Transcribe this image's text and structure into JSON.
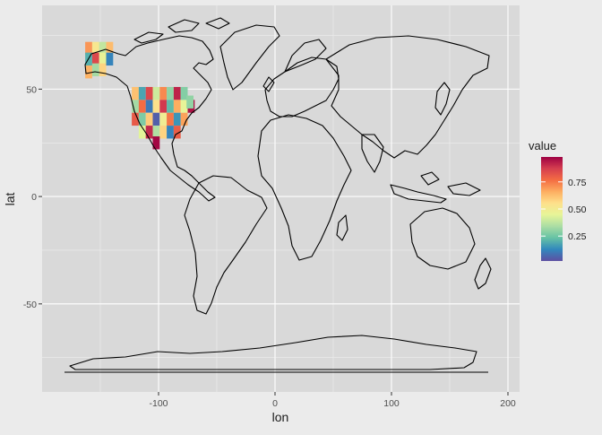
{
  "chart_data": {
    "type": "heatmap",
    "subtype": "choropleth-grid-over-world-map",
    "xlabel": "lon",
    "ylabel": "lat",
    "xlim": [
      -200,
      210
    ],
    "ylim": [
      -91,
      89
    ],
    "x_ticks": [
      -100,
      0,
      100,
      200
    ],
    "y_ticks": [
      -50,
      0,
      50
    ],
    "x_tick_labels": [
      "-100",
      "0",
      "100",
      "200"
    ],
    "y_tick_labels": [
      "-50",
      "0",
      "50"
    ],
    "grid": true,
    "legend": {
      "title": "value",
      "position": "right",
      "ticks": [
        0.25,
        0.5,
        0.75
      ],
      "tick_labels": [
        "0.25",
        "0.50",
        "0.75"
      ],
      "range": [
        0.02,
        0.98
      ],
      "palette": [
        "#5e4fa2",
        "#3288bd",
        "#66c2a5",
        "#abdda4",
        "#e6f598",
        "#fee08b",
        "#fdae61",
        "#f46d43",
        "#d53e4f",
        "#9e0142"
      ]
    },
    "cells": [
      {
        "lon": -120,
        "lat": 48,
        "value": 0.62
      },
      {
        "lon": -114,
        "lat": 48,
        "value": 0.18
      },
      {
        "lon": -108,
        "lat": 48,
        "value": 0.85
      },
      {
        "lon": -102,
        "lat": 48,
        "value": 0.4
      },
      {
        "lon": -96,
        "lat": 48,
        "value": 0.72
      },
      {
        "lon": -90,
        "lat": 48,
        "value": 0.3
      },
      {
        "lon": -84,
        "lat": 48,
        "value": 0.92
      },
      {
        "lon": -120,
        "lat": 42,
        "value": 0.33
      },
      {
        "lon": -114,
        "lat": 42,
        "value": 0.77
      },
      {
        "lon": -108,
        "lat": 42,
        "value": 0.1
      },
      {
        "lon": -102,
        "lat": 42,
        "value": 0.55
      },
      {
        "lon": -96,
        "lat": 42,
        "value": 0.88
      },
      {
        "lon": -90,
        "lat": 42,
        "value": 0.22
      },
      {
        "lon": -84,
        "lat": 42,
        "value": 0.66
      },
      {
        "lon": -78,
        "lat": 42,
        "value": 0.45
      },
      {
        "lon": -72,
        "lat": 42,
        "value": 0.95
      },
      {
        "lon": -120,
        "lat": 36,
        "value": 0.81
      },
      {
        "lon": -114,
        "lat": 36,
        "value": 0.27
      },
      {
        "lon": -108,
        "lat": 36,
        "value": 0.6
      },
      {
        "lon": -102,
        "lat": 36,
        "value": 0.05
      },
      {
        "lon": -96,
        "lat": 36,
        "value": 0.49
      },
      {
        "lon": -90,
        "lat": 36,
        "value": 0.75
      },
      {
        "lon": -84,
        "lat": 36,
        "value": 0.15
      },
      {
        "lon": -78,
        "lat": 36,
        "value": 0.68
      },
      {
        "lon": -114,
        "lat": 30,
        "value": 0.44
      },
      {
        "lon": -108,
        "lat": 30,
        "value": 0.91
      },
      {
        "lon": -102,
        "lat": 30,
        "value": 0.35
      },
      {
        "lon": -96,
        "lat": 30,
        "value": 0.58
      },
      {
        "lon": -90,
        "lat": 30,
        "value": 0.12
      },
      {
        "lon": -84,
        "lat": 30,
        "value": 0.8
      },
      {
        "lon": -102,
        "lat": 25,
        "value": 0.97
      },
      {
        "lon": -78,
        "lat": 48,
        "value": 0.28
      },
      {
        "lon": -160,
        "lat": 69,
        "value": 0.7
      },
      {
        "lon": -154,
        "lat": 69,
        "value": 0.52
      },
      {
        "lon": -148,
        "lat": 69,
        "value": 0.38
      },
      {
        "lon": -142,
        "lat": 69,
        "value": 0.63
      },
      {
        "lon": -160,
        "lat": 64,
        "value": 0.2
      },
      {
        "lon": -154,
        "lat": 64,
        "value": 0.85
      },
      {
        "lon": -148,
        "lat": 64,
        "value": 0.46
      },
      {
        "lon": -142,
        "lat": 64,
        "value": 0.12
      },
      {
        "lon": -154,
        "lat": 59,
        "value": 0.33
      },
      {
        "lon": -148,
        "lat": 59,
        "value": 0.58
      },
      {
        "lon": -160,
        "lat": 58,
        "value": 0.65
      },
      {
        "lon": -73,
        "lat": 44,
        "value": 0.3
      }
    ]
  }
}
